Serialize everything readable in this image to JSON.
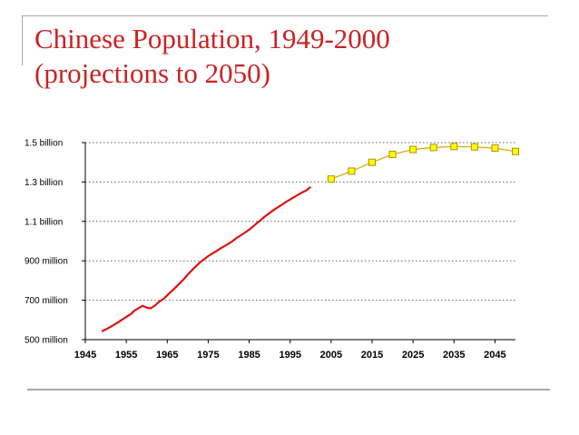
{
  "title": {
    "line1": "Chinese Population, 1949-2000",
    "line2": "(projections to 2050)"
  },
  "colors": {
    "title": "#cc2222",
    "historical_line": "#dd1111",
    "projection_line": "#d4a800",
    "projection_marker_fill": "#ffff00",
    "projection_marker_stroke": "#b09000",
    "gridline": "#606060",
    "decor_lines": "#a8a8a8"
  },
  "chart_data": {
    "type": "line",
    "title": "",
    "xlabel": "",
    "ylabel": "",
    "xlim": [
      1945,
      2050
    ],
    "ylim": [
      500,
      1500
    ],
    "grid": true,
    "grid_style": "dotted-horizontal",
    "legend": "none",
    "x_tick_labels": [
      "1945",
      "1955",
      "1965",
      "1975",
      "1985",
      "1995",
      "2005",
      "2015",
      "2025",
      "2035",
      "2045"
    ],
    "x_ticks": [
      1945,
      1955,
      1965,
      1975,
      1985,
      1995,
      2005,
      2015,
      2025,
      2035,
      2045
    ],
    "y_ticks": [
      500,
      700,
      900,
      1100,
      1300,
      1500
    ],
    "y_tick_labels": [
      "500 million",
      "700 million",
      "900 million",
      "1.1 billion",
      "1.3 billion",
      "1.5 billion"
    ],
    "y_unit": "million",
    "series": [
      {
        "style": "solid-line",
        "x": [
          1949,
          1950,
          1951,
          1952,
          1953,
          1954,
          1955,
          1956,
          1957,
          1958,
          1959,
          1960,
          1961,
          1962,
          1963,
          1964,
          1965,
          1966,
          1967,
          1968,
          1969,
          1970,
          1971,
          1972,
          1973,
          1974,
          1975,
          1976,
          1977,
          1978,
          1979,
          1980,
          1981,
          1982,
          1983,
          1984,
          1985,
          1986,
          1987,
          1988,
          1989,
          1990,
          1991,
          1992,
          1993,
          1994,
          1995,
          1996,
          1997,
          1998,
          1999,
          2000
        ],
        "values": [
          542,
          552,
          563,
          575,
          588,
          602,
          615,
          628,
          647,
          660,
          672,
          662,
          659,
          673,
          692,
          705,
          725,
          745,
          764,
          785,
          806,
          830,
          852,
          872,
          892,
          908,
          924,
          937,
          950,
          963,
          975,
          987,
          1001,
          1017,
          1030,
          1044,
          1058,
          1075,
          1093,
          1110,
          1127,
          1143,
          1158,
          1172,
          1185,
          1199,
          1211,
          1224,
          1236,
          1248,
          1258,
          1275
        ]
      },
      {
        "style": "line-with-square-markers",
        "x": [
          2005,
          2010,
          2015,
          2020,
          2025,
          2030,
          2035,
          2040,
          2045,
          2050
        ],
        "values": [
          1315,
          1355,
          1400,
          1440,
          1465,
          1475,
          1480,
          1478,
          1472,
          1455
        ]
      }
    ]
  }
}
